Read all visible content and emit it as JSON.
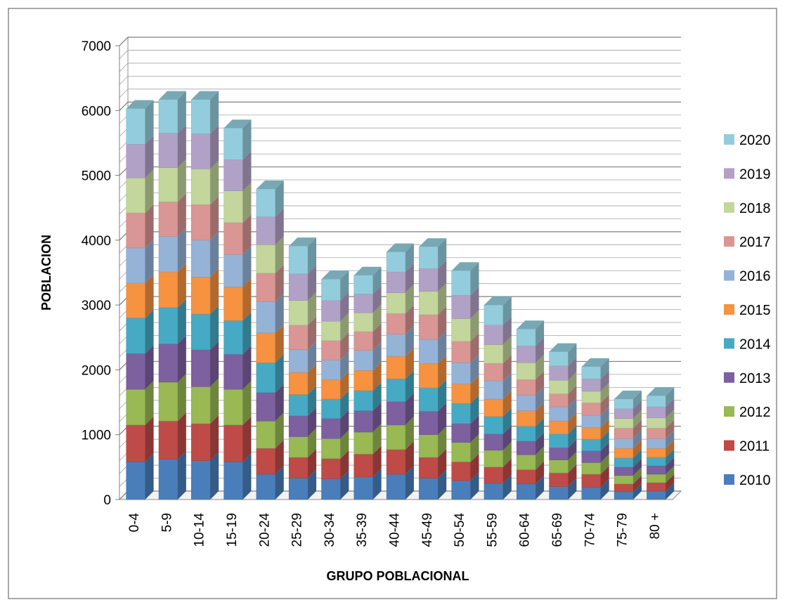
{
  "chart_data": {
    "type": "bar",
    "stacked": true,
    "style": "3d-column",
    "title": "",
    "xlabel": "GRUPO POBLACIONAL",
    "ylabel": "POBLACION",
    "ylim": [
      0,
      7000
    ],
    "y_major_ticks": [
      0,
      1000,
      2000,
      3000,
      4000,
      5000,
      6000,
      7000
    ],
    "y_minor_step": 200,
    "grid": true,
    "legend_position": "right",
    "categories": [
      "0-4",
      "5-9",
      "10-14",
      "15-19",
      "20-24",
      "25-29",
      "30-34",
      "35-39",
      "40-44",
      "45-49",
      "50-54",
      "55-59",
      "60-64",
      "65-69",
      "70-74",
      "75-79",
      "80 +"
    ],
    "series": [
      {
        "name": "2010",
        "color": "#4a7ebb",
        "values": [
          580,
          620,
          600,
          580,
          390,
          330,
          320,
          350,
          390,
          330,
          290,
          250,
          240,
          200,
          190,
          120,
          130
        ]
      },
      {
        "name": "2011",
        "color": "#be4b48",
        "values": [
          570,
          590,
          570,
          570,
          400,
          320,
          310,
          350,
          380,
          320,
          290,
          250,
          220,
          210,
          200,
          120,
          130
        ]
      },
      {
        "name": "2012",
        "color": "#98b954",
        "values": [
          550,
          600,
          570,
          550,
          420,
          320,
          310,
          340,
          380,
          350,
          300,
          260,
          230,
          200,
          180,
          130,
          130
        ]
      },
      {
        "name": "2013",
        "color": "#7d60a0",
        "values": [
          550,
          590,
          570,
          540,
          440,
          320,
          310,
          330,
          360,
          360,
          290,
          250,
          210,
          190,
          180,
          130,
          130
        ]
      },
      {
        "name": "2014",
        "color": "#46aac5",
        "values": [
          550,
          560,
          550,
          520,
          460,
          330,
          300,
          310,
          350,
          360,
          310,
          270,
          230,
          210,
          180,
          140,
          130
        ]
      },
      {
        "name": "2015",
        "color": "#f69240",
        "values": [
          540,
          550,
          570,
          520,
          460,
          340,
          300,
          310,
          350,
          380,
          300,
          270,
          240,
          200,
          180,
          150,
          140
        ]
      },
      {
        "name": "2016",
        "color": "#95b3d7",
        "values": [
          540,
          550,
          570,
          500,
          480,
          350,
          300,
          310,
          340,
          370,
          330,
          280,
          240,
          220,
          190,
          150,
          150
        ]
      },
      {
        "name": "2017",
        "color": "#d99694",
        "values": [
          540,
          530,
          550,
          490,
          440,
          380,
          300,
          290,
          320,
          380,
          330,
          270,
          240,
          200,
          190,
          160,
          160
        ]
      },
      {
        "name": "2018",
        "color": "#c3d69b",
        "values": [
          540,
          530,
          550,
          490,
          440,
          380,
          300,
          290,
          320,
          360,
          350,
          290,
          260,
          210,
          180,
          150,
          160
        ]
      },
      {
        "name": "2019",
        "color": "#b2a1c7",
        "values": [
          520,
          530,
          540,
          480,
          430,
          410,
          320,
          290,
          320,
          350,
          360,
          300,
          260,
          220,
          190,
          150,
          170
        ]
      },
      {
        "name": "2020",
        "color": "#93cddd",
        "values": [
          550,
          520,
          530,
          490,
          430,
          430,
          330,
          290,
          310,
          340,
          380,
          310,
          260,
          220,
          190,
          150,
          170
        ]
      }
    ]
  }
}
